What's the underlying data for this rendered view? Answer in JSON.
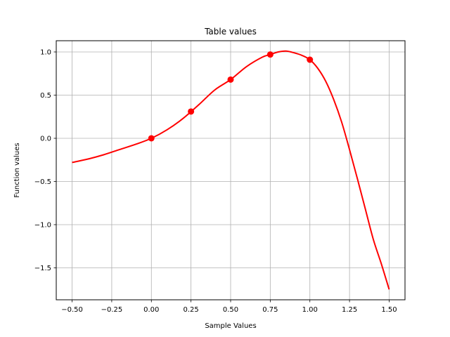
{
  "chart_data": {
    "type": "line",
    "title": "Table values",
    "xlabel": "Sample Values",
    "ylabel": "Function values",
    "xlim": [
      -0.6,
      1.6
    ],
    "ylim": [
      -1.87,
      1.13
    ],
    "xticks": [
      -0.5,
      -0.25,
      0.0,
      0.25,
      0.5,
      0.75,
      1.0,
      1.25,
      1.5
    ],
    "xtick_labels": [
      "−0.50",
      "−0.25",
      "0.00",
      "0.25",
      "0.50",
      "0.75",
      "1.00",
      "1.25",
      "1.50"
    ],
    "yticks": [
      1.0,
      0.5,
      0.0,
      -0.5,
      -1.0,
      -1.5
    ],
    "ytick_labels": [
      "1.0",
      "0.5",
      "0.0",
      "−0.5",
      "−1.0",
      "−1.5"
    ],
    "grid": true,
    "series": [
      {
        "style": "curve",
        "color": "#ff0000",
        "x": [
          -0.5,
          -0.4,
          -0.3,
          -0.2,
          -0.1,
          0.0,
          0.1,
          0.2,
          0.3,
          0.4,
          0.5,
          0.6,
          0.7,
          0.75,
          0.8,
          0.85,
          0.9,
          0.95,
          1.0,
          1.05,
          1.1,
          1.15,
          1.2,
          1.25,
          1.3,
          1.35,
          1.4,
          1.45,
          1.5
        ],
        "y": [
          -0.28,
          -0.24,
          -0.19,
          -0.13,
          -0.07,
          0.0,
          0.1,
          0.23,
          0.39,
          0.56,
          0.68,
          0.83,
          0.94,
          0.97,
          1.0,
          1.01,
          0.99,
          0.96,
          0.91,
          0.81,
          0.66,
          0.45,
          0.19,
          -0.13,
          -0.47,
          -0.82,
          -1.17,
          -1.45,
          -1.75
        ]
      },
      {
        "style": "markers",
        "color": "#ff0000",
        "x": [
          0.0,
          0.25,
          0.5,
          0.75,
          1.0
        ],
        "y": [
          0.0,
          0.31,
          0.68,
          0.97,
          0.91
        ]
      }
    ]
  }
}
